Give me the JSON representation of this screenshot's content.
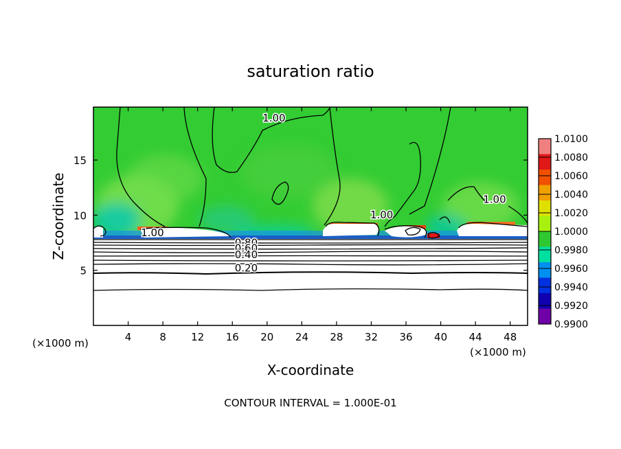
{
  "chart_data": {
    "type": "heatmap",
    "title": "saturation ratio",
    "xlabel": "X-coordinate",
    "ylabel": "Z-coordinate",
    "x_unit_label_left": "(×1000 m)",
    "x_unit_label_right": "(×1000 m)",
    "x_ticks": [
      4,
      8,
      12,
      16,
      20,
      24,
      28,
      32,
      36,
      40,
      44,
      48
    ],
    "y_ticks": [
      5,
      10,
      15
    ],
    "xlim": [
      0,
      50
    ],
    "ylim": [
      0,
      19.8
    ],
    "colorbar": {
      "ticks": [
        "1.0100",
        "1.0080",
        "1.0060",
        "1.0040",
        "1.0020",
        "1.0000",
        "0.9980",
        "0.9960",
        "0.9940",
        "0.9920",
        "0.9900"
      ],
      "colors": [
        "#f08080",
        "#e01818",
        "#f05000",
        "#f0a000",
        "#e0e000",
        "#a8f010",
        "#30c830",
        "#00e0a0",
        "#0090f0",
        "#0030e0",
        "#1000b0",
        "#7000a8"
      ]
    },
    "contour_labels": [
      {
        "text": "1.00",
        "x": 20.8,
        "y": 18.5
      },
      {
        "text": "1.00",
        "x": 33.2,
        "y": 9.7
      },
      {
        "text": "1.00",
        "x": 46.2,
        "y": 11.1
      },
      {
        "text": "1.00",
        "x": 6.8,
        "y": 8.1
      },
      {
        "text": "0.80",
        "x": 17.6,
        "y": 7.2
      },
      {
        "text": "0.60",
        "x": 17.6,
        "y": 6.7
      },
      {
        "text": "0.40",
        "x": 17.6,
        "y": 6.1
      },
      {
        "text": "0.20",
        "x": 17.6,
        "y": 4.9
      }
    ],
    "contour_interval_text": "CONTOUR INTERVAL = 1.000E-01"
  }
}
